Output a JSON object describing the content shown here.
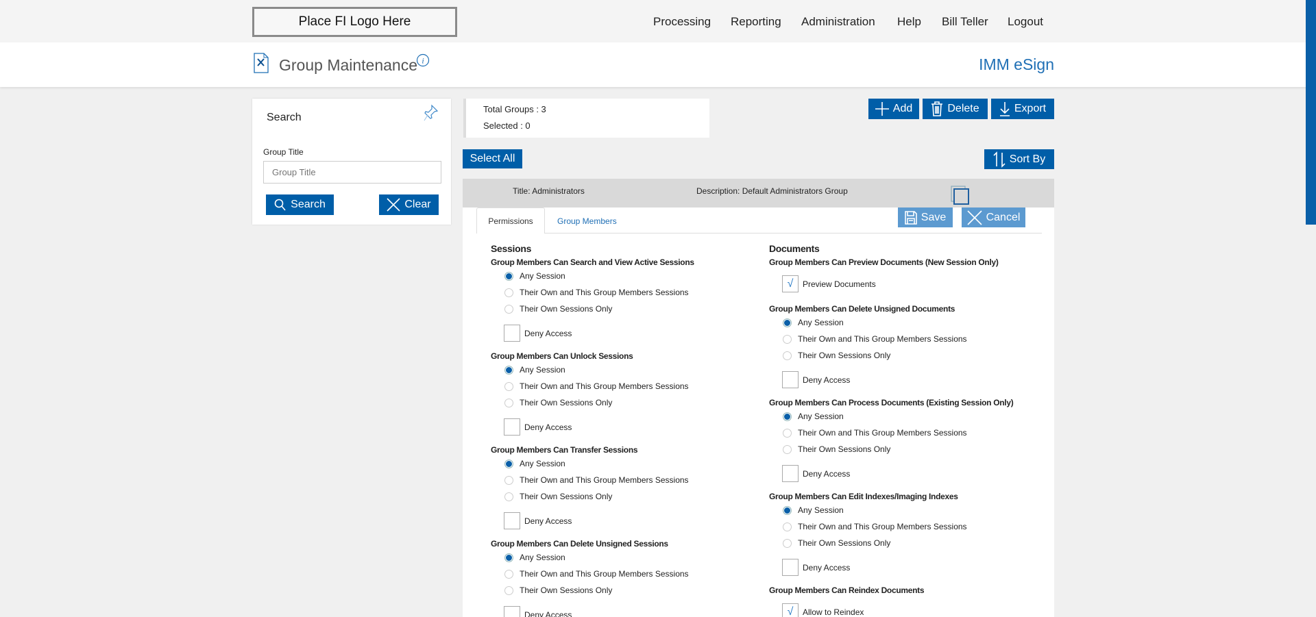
{
  "topnav": {
    "logo": "Place FI Logo Here",
    "items": [
      "Processing",
      "Reporting",
      "Administration",
      "Help",
      "Bill Teller",
      "Logout"
    ]
  },
  "header": {
    "title": "Group Maintenance",
    "brand": "IMM eSign"
  },
  "search": {
    "title": "Search",
    "field_label": "Group Title",
    "placeholder": "Group Title",
    "search_label": "Search",
    "clear_label": "Clear"
  },
  "summary": {
    "total": "Total Groups : 3",
    "selected": "Selected : 0"
  },
  "toolbar": {
    "add": "Add",
    "delete": "Delete",
    "export": "Export",
    "select_all": "Select All",
    "sort_by": "Sort By"
  },
  "group": {
    "title": "Title:  Administrators",
    "description": "Description: Default Administrators Group",
    "tabs": [
      "Permissions",
      "Group Members"
    ],
    "save": "Save",
    "cancel": "Cancel"
  },
  "sessions": {
    "heading": "Sessions",
    "groups": [
      {
        "title": "Group Members Can Search and View Active Sessions",
        "options": [
          "Any Session",
          "Their Own and This Group Members Sessions",
          "Their Own Sessions Only"
        ],
        "selected": 0,
        "deny": "Deny Access",
        "deny_checked": false
      },
      {
        "title": "Group Members Can Unlock Sessions",
        "options": [
          "Any Session",
          "Their Own and This Group Members Sessions",
          "Their Own Sessions Only"
        ],
        "selected": 0,
        "deny": "Deny Access",
        "deny_checked": false
      },
      {
        "title": "Group Members Can Transfer Sessions",
        "options": [
          "Any Session",
          "Their Own and This Group Members Sessions",
          "Their Own Sessions Only"
        ],
        "selected": 0,
        "deny": "Deny Access",
        "deny_checked": false
      },
      {
        "title": "Group Members Can Delete Unsigned Sessions",
        "options": [
          "Any Session",
          "Their Own and This Group Members Sessions",
          "Their Own Sessions Only"
        ],
        "selected": 0,
        "deny": "Deny Access",
        "deny_checked": false
      }
    ]
  },
  "documents": {
    "heading": "Documents",
    "preview": {
      "title": "Group Members Can Preview Documents (New Session Only)",
      "check": "Preview Documents",
      "checked": true
    },
    "groups": [
      {
        "title": "Group Members Can Delete Unsigned Documents",
        "options": [
          "Any Session",
          "Their Own and This Group Members Sessions",
          "Their Own Sessions Only"
        ],
        "selected": 0,
        "deny": "Deny Access",
        "deny_checked": false
      },
      {
        "title": "Group Members Can Process Documents (Existing Session Only)",
        "options": [
          "Any Session",
          "Their Own and This Group Members Sessions",
          "Their Own Sessions Only"
        ],
        "selected": 0,
        "deny": "Deny Access",
        "deny_checked": false
      },
      {
        "title": "Group Members Can Edit Indexes/Imaging Indexes",
        "options": [
          "Any Session",
          "Their Own and This Group Members Sessions",
          "Their Own Sessions Only"
        ],
        "selected": 0,
        "deny": "Deny Access",
        "deny_checked": false
      }
    ],
    "reindex": {
      "title": "Group Members Can Reindex Documents",
      "check": "Allow to Reindex",
      "checked": true
    }
  },
  "colors": {
    "primary": "#005ea8",
    "primary_light": "#5c9ad0",
    "brand_text": "#1f6fb5"
  }
}
